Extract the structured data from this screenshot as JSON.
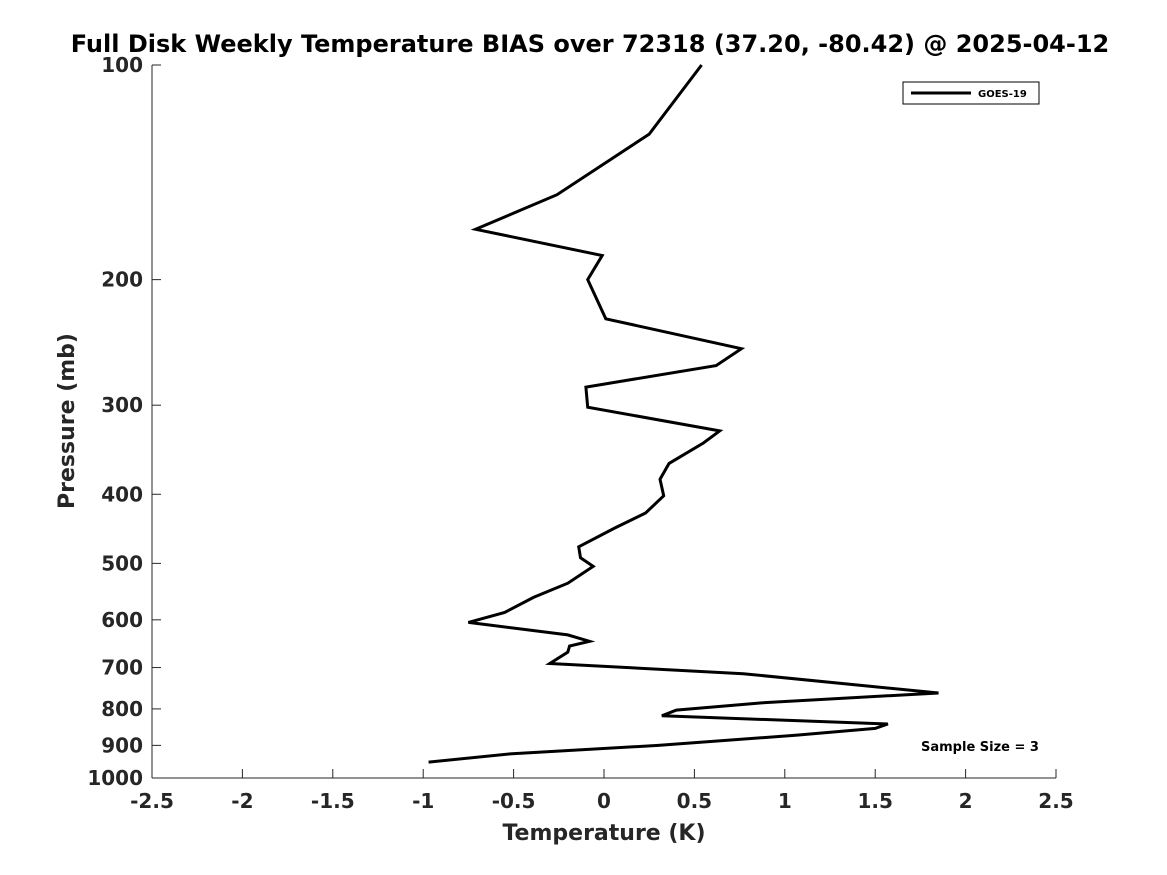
{
  "chart_data": {
    "type": "line",
    "title": "Full Disk Weekly Temperature BIAS over 72318 (37.20, -80.42) @ 2025-04-12",
    "xlabel": "Temperature (K)",
    "ylabel": "Pressure (mb)",
    "xlim": [
      -2.5,
      2.5
    ],
    "ylim": [
      100,
      1000
    ],
    "yscale": "log",
    "y_reversed": true,
    "grid": false,
    "x_ticks": [
      -2.5,
      -2,
      -1.5,
      -1,
      -0.5,
      0,
      0.5,
      1,
      1.5,
      2,
      2.5
    ],
    "x_tick_labels": [
      "-2.5",
      "-2",
      "-1.5",
      "-1",
      "-0.5",
      "0",
      "0.5",
      "1",
      "1.5",
      "2",
      "2.5"
    ],
    "y_ticks": [
      100,
      200,
      300,
      400,
      500,
      600,
      700,
      800,
      900,
      1000
    ],
    "y_tick_labels": [
      "100",
      "200",
      "300",
      "400",
      "500",
      "600",
      "700",
      "800",
      "900",
      "1000"
    ],
    "legend": {
      "position": "top-right",
      "entries": [
        "GOES-19"
      ]
    },
    "annotation": "Sample Size = 3",
    "series": [
      {
        "name": "GOES-19",
        "color": "#000000",
        "x": [
          0.54,
          0.25,
          -0.26,
          -0.71,
          -0.01,
          -0.09,
          0.01,
          0.76,
          0.62,
          -0.1,
          -0.09,
          0.64,
          0.55,
          0.36,
          0.31,
          0.33,
          0.23,
          0.06,
          -0.14,
          -0.13,
          -0.06,
          -0.2,
          -0.39,
          -0.55,
          -0.75,
          -0.2,
          -0.08,
          -0.19,
          -0.2,
          -0.3,
          0.77,
          1.85,
          0.89,
          0.4,
          0.32,
          1.57,
          1.5,
          1.06,
          0.3,
          -0.52,
          -0.97
        ],
        "y": [
          100,
          125,
          152,
          170,
          185,
          200,
          227,
          250,
          264,
          283,
          302,
          326,
          339,
          362,
          381,
          402,
          425,
          446,
          474,
          491,
          505,
          533,
          558,
          586,
          605,
          630,
          643,
          653,
          666,
          691,
          714,
          760,
          784,
          803,
          818,
          840,
          852,
          871,
          900,
          925,
          950
        ]
      }
    ]
  }
}
